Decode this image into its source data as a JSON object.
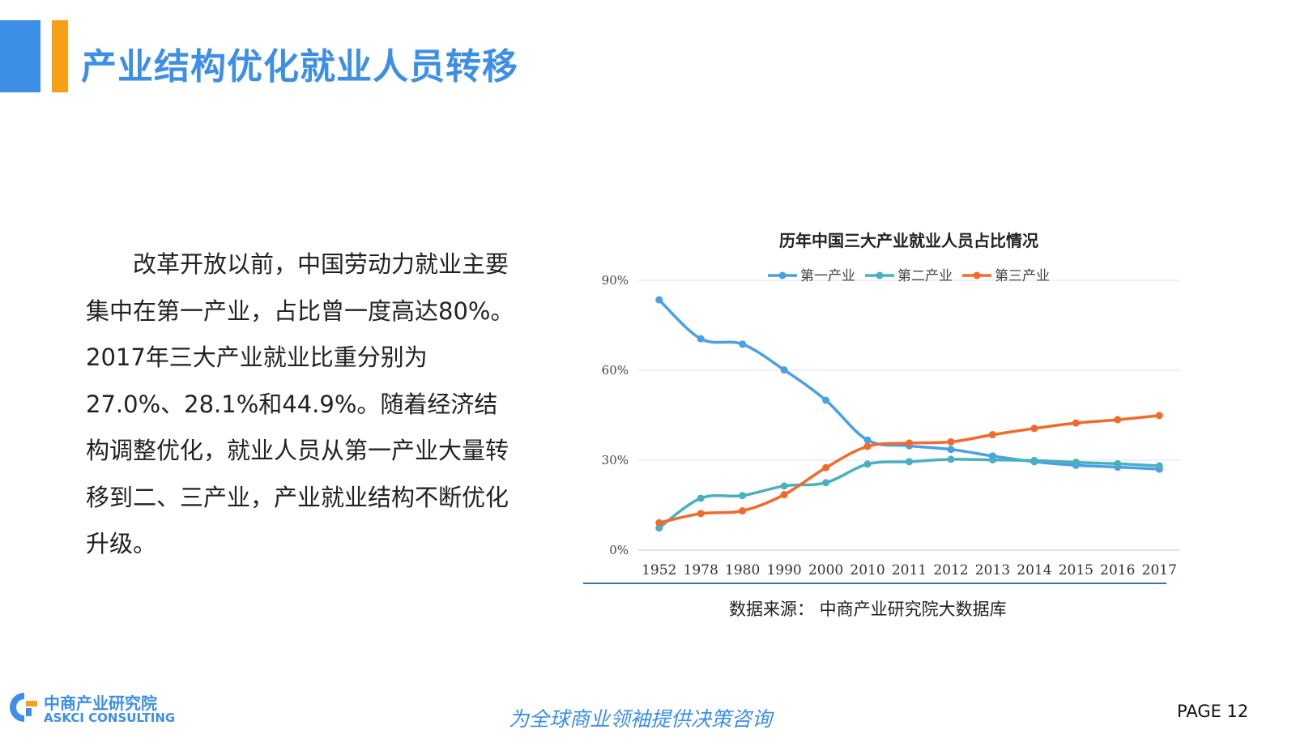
{
  "header": {
    "title": "产业结构优化就业人员转移"
  },
  "body": {
    "paragraph": "改革开放以前，中国劳动力就业主要集中在第一产业，占比曾一度高达80%。2017年三大产业就业比重分别为27.0%、28.1%和44.9%。随着经济结构调整优化，就业人员从第一产业大量转移到二、三产业，产业就业结构不断优化升级。"
  },
  "chart_data": {
    "type": "line",
    "title": "历年中国三大产业就业人员占比情况",
    "categories": [
      "1952",
      "1978",
      "1980",
      "1990",
      "2000",
      "2010",
      "2011",
      "2012",
      "2013",
      "2014",
      "2015",
      "2016",
      "2017"
    ],
    "series": [
      {
        "name": "第一产业",
        "color": "#4aa0e6",
        "values": [
          83.5,
          70.5,
          68.7,
          60.1,
          50.0,
          36.7,
          34.8,
          33.6,
          31.4,
          29.5,
          28.3,
          27.7,
          27.0
        ]
      },
      {
        "name": "第二产业",
        "color": "#4ab0c0",
        "values": [
          7.4,
          17.3,
          18.2,
          21.4,
          22.5,
          28.7,
          29.5,
          30.3,
          30.1,
          29.9,
          29.3,
          28.8,
          28.1
        ]
      },
      {
        "name": "第三产业",
        "color": "#f26a2a",
        "values": [
          9.1,
          12.2,
          13.1,
          18.5,
          27.5,
          34.6,
          35.7,
          36.1,
          38.5,
          40.6,
          42.4,
          43.5,
          44.9
        ]
      }
    ],
    "yticks": [
      "0%",
      "30%",
      "60%",
      "90%"
    ],
    "ylim": [
      0,
      90
    ],
    "legend_position": "top",
    "grid": true
  },
  "source": "数据来源： 中商产业研究院大数据库",
  "footer": {
    "logo_cn": "中商产业研究院",
    "logo_en": "ASKCI CONSULTING",
    "slogan": "为全球商业领袖提供决策咨询",
    "page": "PAGE 12"
  }
}
